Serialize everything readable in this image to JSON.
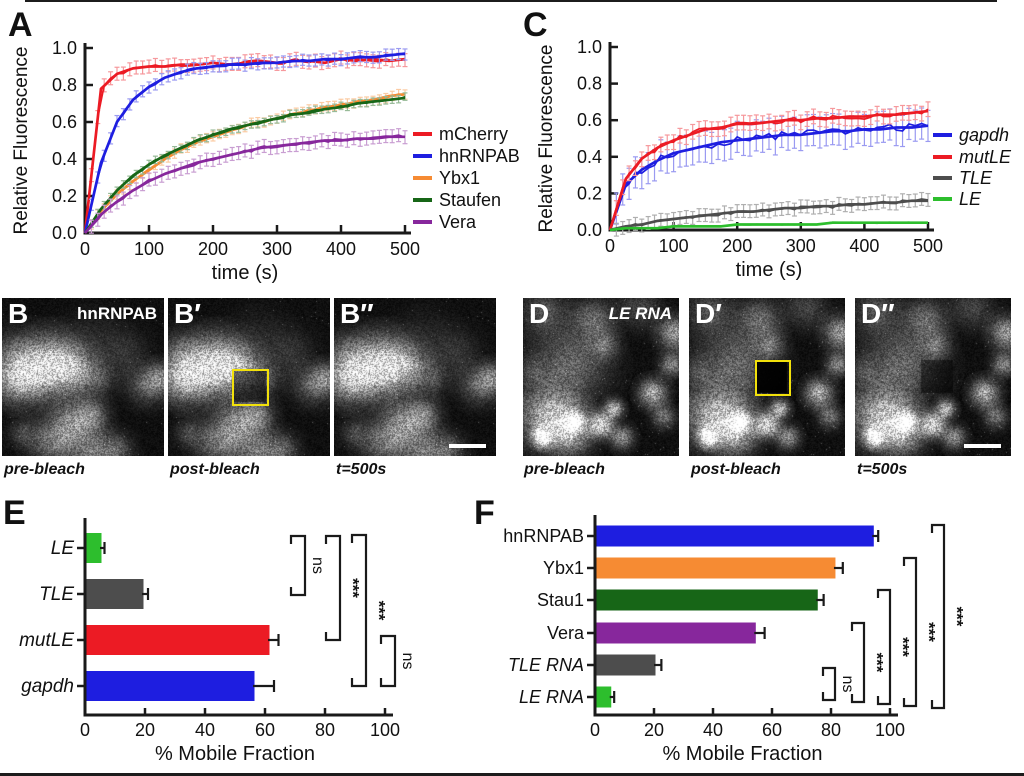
{
  "chart_data": [
    {
      "panel": "A",
      "type": "line",
      "xlabel": "time (s)",
      "ylabel": "Relative Fluorescence",
      "xlim": [
        0,
        500
      ],
      "ylim": [
        0,
        1.0
      ],
      "xticks": [
        "0",
        "100",
        "200",
        "300",
        "400",
        "500"
      ],
      "yticks": [
        "0.0",
        "0.2",
        "0.4",
        "0.6",
        "0.8",
        "1.0"
      ],
      "grid": false,
      "legend_position": "right",
      "legend_italic": false,
      "x": [
        0,
        25,
        50,
        75,
        100,
        125,
        150,
        175,
        200,
        225,
        250,
        275,
        300,
        325,
        350,
        375,
        400,
        425,
        450,
        475,
        500
      ],
      "series": [
        {
          "name": "mCherry",
          "color": "#EC1B24",
          "err": 0.035,
          "values": [
            0,
            0.78,
            0.86,
            0.89,
            0.9,
            0.9,
            0.91,
            0.91,
            0.92,
            0.91,
            0.92,
            0.93,
            0.92,
            0.93,
            0.93,
            0.92,
            0.94,
            0.93,
            0.94,
            0.93,
            0.94
          ]
        },
        {
          "name": "hnRNPAB",
          "color": "#1E1EE0",
          "err": 0.03,
          "values": [
            0,
            0.38,
            0.6,
            0.72,
            0.79,
            0.84,
            0.87,
            0.89,
            0.9,
            0.91,
            0.91,
            0.92,
            0.92,
            0.93,
            0.93,
            0.94,
            0.94,
            0.95,
            0.95,
            0.96,
            0.97
          ]
        },
        {
          "name": "Ybx1",
          "color": "#F68B33",
          "err": 0.025,
          "values": [
            0,
            0.12,
            0.21,
            0.28,
            0.34,
            0.4,
            0.45,
            0.49,
            0.52,
            0.55,
            0.58,
            0.6,
            0.62,
            0.64,
            0.66,
            0.68,
            0.69,
            0.71,
            0.72,
            0.74,
            0.75
          ]
        },
        {
          "name": "Staufen",
          "color": "#176617",
          "err": 0.02,
          "values": [
            0,
            0.13,
            0.23,
            0.31,
            0.37,
            0.42,
            0.46,
            0.5,
            0.53,
            0.56,
            0.58,
            0.6,
            0.62,
            0.64,
            0.65,
            0.67,
            0.68,
            0.7,
            0.71,
            0.72,
            0.73
          ]
        },
        {
          "name": "Vera",
          "color": "#87279C",
          "err": 0.035,
          "values": [
            0,
            0.1,
            0.17,
            0.23,
            0.28,
            0.32,
            0.35,
            0.38,
            0.4,
            0.42,
            0.44,
            0.46,
            0.47,
            0.48,
            0.49,
            0.5,
            0.5,
            0.51,
            0.51,
            0.52,
            0.52
          ]
        }
      ]
    },
    {
      "panel": "C",
      "type": "line",
      "xlabel": "time (s)",
      "ylabel": "Relative Fluorescence",
      "xlim": [
        0,
        500
      ],
      "ylim": [
        0,
        1.0
      ],
      "xticks": [
        "0",
        "100",
        "200",
        "300",
        "400",
        "500"
      ],
      "yticks": [
        "0.0",
        "0.2",
        "0.4",
        "0.6",
        "0.8",
        "1.0"
      ],
      "grid": false,
      "legend_position": "right",
      "legend_italic": true,
      "x": [
        0,
        25,
        50,
        75,
        100,
        125,
        150,
        175,
        200,
        225,
        250,
        275,
        300,
        325,
        350,
        375,
        400,
        425,
        450,
        475,
        500
      ],
      "series": [
        {
          "name": "gapdh",
          "color": "#1E1EE0",
          "err": 0.085,
          "values": [
            0,
            0.25,
            0.33,
            0.38,
            0.42,
            0.44,
            0.46,
            0.48,
            0.49,
            0.5,
            0.51,
            0.52,
            0.52,
            0.53,
            0.54,
            0.54,
            0.55,
            0.55,
            0.56,
            0.56,
            0.57
          ]
        },
        {
          "name": "mutLE",
          "color": "#EC1B24",
          "err": 0.04,
          "values": [
            0,
            0.28,
            0.39,
            0.45,
            0.49,
            0.52,
            0.55,
            0.56,
            0.58,
            0.58,
            0.59,
            0.6,
            0.6,
            0.61,
            0.61,
            0.62,
            0.62,
            0.63,
            0.63,
            0.64,
            0.65
          ]
        },
        {
          "name": "TLE",
          "color": "#4D4D4D",
          "err": 0.035,
          "values": [
            0,
            0.02,
            0.03,
            0.05,
            0.06,
            0.07,
            0.08,
            0.09,
            0.1,
            0.1,
            0.11,
            0.12,
            0.12,
            0.13,
            0.13,
            0.14,
            0.14,
            0.15,
            0.15,
            0.16,
            0.16
          ]
        },
        {
          "name": "LE",
          "color": "#2DBE2D",
          "err": 0.006,
          "values": [
            0,
            0.01,
            0.01,
            0.01,
            0.02,
            0.02,
            0.02,
            0.02,
            0.03,
            0.03,
            0.03,
            0.03,
            0.03,
            0.03,
            0.04,
            0.04,
            0.04,
            0.04,
            0.04,
            0.04,
            0.04
          ]
        }
      ]
    },
    {
      "panel": "E",
      "type": "bar",
      "orientation": "horizontal",
      "xlabel": "% Mobile Fraction",
      "xlim": [
        0,
        100
      ],
      "xticks": [
        "0",
        "20",
        "40",
        "60",
        "80",
        "100"
      ],
      "categories": [
        "LE",
        "TLE",
        "mutLE",
        "gapdh"
      ],
      "categories_italic": [
        true,
        true,
        true,
        true
      ],
      "values": [
        5,
        19,
        61,
        56
      ],
      "errors": [
        1.5,
        2,
        3.5,
        7
      ],
      "colors": [
        "#2DBE2D",
        "#4D4D4D",
        "#EC1B24",
        "#1E1EE0"
      ],
      "significance": [
        {
          "between": [
            "LE",
            "TLE"
          ],
          "label": "ns"
        },
        {
          "between": [
            "LE",
            "mutLE"
          ],
          "label": "***"
        },
        {
          "between": [
            "LE",
            "gapdh"
          ],
          "label": "***"
        },
        {
          "between": [
            "mutLE",
            "gapdh"
          ],
          "label": "ns"
        }
      ]
    },
    {
      "panel": "F",
      "type": "bar",
      "orientation": "horizontal",
      "xlabel": "% Mobile Fraction",
      "xlim": [
        0,
        100
      ],
      "xticks": [
        "0",
        "20",
        "40",
        "60",
        "80",
        "100"
      ],
      "categories": [
        "hnRNPAB",
        "Ybx1",
        "Stau1",
        "Vera",
        "TLE RNA",
        "LE RNA"
      ],
      "categories_italic": [
        false,
        false,
        false,
        false,
        true,
        true
      ],
      "values": [
        94,
        81,
        75,
        54,
        20,
        5
      ],
      "errors": [
        2,
        3,
        2.5,
        3.5,
        2.5,
        1.5
      ],
      "colors": [
        "#1E1EE0",
        "#F68B33",
        "#176617",
        "#87279C",
        "#4D4D4D",
        "#2DBE2D"
      ],
      "significance": [
        {
          "between": [
            "TLE RNA",
            "LE RNA"
          ],
          "label": "ns"
        },
        {
          "between": [
            "Vera",
            "LE RNA"
          ],
          "label": "***"
        },
        {
          "between": [
            "Stau1",
            "LE RNA"
          ],
          "label": "***"
        },
        {
          "between": [
            "Ybx1",
            "LE RNA"
          ],
          "label": "***"
        },
        {
          "between": [
            "hnRNPAB",
            "LE RNA"
          ],
          "label": "***"
        }
      ]
    }
  ],
  "micrographs": {
    "roi_box_color": "#F2E10B",
    "scale_bar_color": "#FFFFFF",
    "B": {
      "title": "hnRNPAB",
      "title_italic": false,
      "frames": [
        {
          "label": "B",
          "caption": "pre-bleach"
        },
        {
          "label": "B′",
          "caption": "post-bleach"
        },
        {
          "label": "B″",
          "caption": "t=500s"
        }
      ]
    },
    "D": {
      "title": "LE RNA",
      "title_italic": true,
      "frames": [
        {
          "label": "D",
          "caption": "pre-bleach"
        },
        {
          "label": "D′",
          "caption": "post-bleach"
        },
        {
          "label": "D″",
          "caption": "t=500s"
        }
      ]
    }
  }
}
